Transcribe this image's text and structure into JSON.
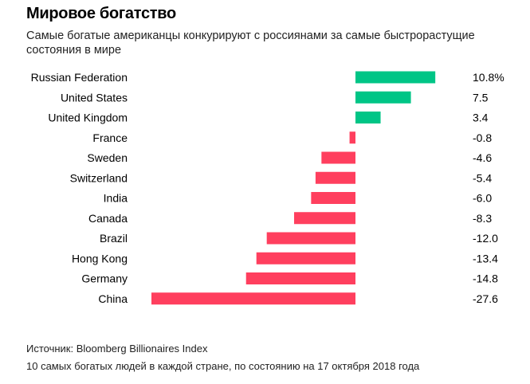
{
  "title": "Мировое богатство",
  "subtitle": "Самые богатые американцы конкурируют с россиянами за самые быстрорастущие состояния в мире",
  "source": "Источник: Bloomberg Billionaires Index",
  "note": "10 самых богатых людей в каждой стране, по состоянию на 17 октября 2018 года",
  "chart_data": {
    "type": "bar",
    "orientation": "horizontal",
    "categories": [
      "Russian Federation",
      "United States",
      "United Kingdom",
      "France",
      "Sweden",
      "Switzerland",
      "India",
      "Canada",
      "Brazil",
      "Hong Kong",
      "Germany",
      "China"
    ],
    "values": [
      10.8,
      7.5,
      3.4,
      -0.8,
      -4.6,
      -5.4,
      -6.0,
      -8.3,
      -12.0,
      -13.4,
      -14.8,
      -27.6
    ],
    "value_labels": [
      "10.8%",
      "7.5",
      "3.4",
      "-0.8",
      "-4.6",
      "-5.4",
      "-6.0",
      "-8.3",
      "-12.0",
      "-13.4",
      "-14.8",
      "-27.6"
    ],
    "xlim": [
      -27.6,
      10.8
    ],
    "grid": false,
    "colors": {
      "positive": "#00c586",
      "negative": "#ff3f5e"
    }
  }
}
